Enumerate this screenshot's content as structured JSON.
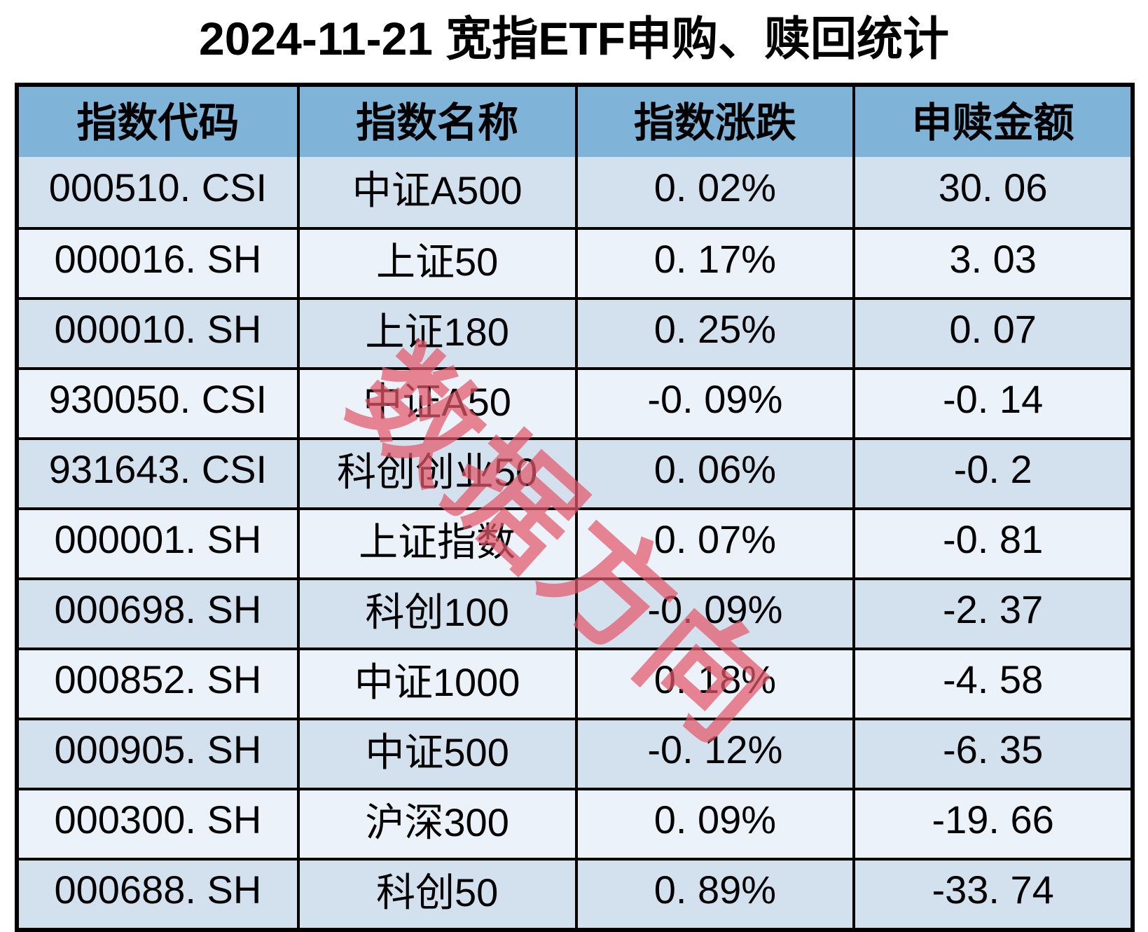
{
  "title": "2024-11-21 宽指ETF申购、赎回统计",
  "watermark": "数据方向",
  "colors": {
    "header_bg": "#7fb4d8",
    "row_odd_bg": "#d3e1ef",
    "row_even_bg": "#ebf2fa",
    "grid_border": "#000000",
    "watermark_color": "#e4596b",
    "title_color": "#000000"
  },
  "table": {
    "headers": {
      "code": "指数代码",
      "name": "指数名称",
      "change": "指数涨跌",
      "amount": "申赎金额"
    },
    "rows": [
      {
        "code": "000510. CSI",
        "name": "中证A500",
        "change": "0. 02%",
        "amount": "30. 06"
      },
      {
        "code": "000016. SH",
        "name": "上证50",
        "change": "0. 17%",
        "amount": "3. 03"
      },
      {
        "code": "000010. SH",
        "name": "上证180",
        "change": "0. 25%",
        "amount": "0. 07"
      },
      {
        "code": "930050. CSI",
        "name": "中证A50",
        "change": "-0. 09%",
        "amount": "-0. 14"
      },
      {
        "code": "931643. CSI",
        "name": "科创创业50",
        "change": "0. 06%",
        "amount": "-0. 2"
      },
      {
        "code": "000001. SH",
        "name": "上证指数",
        "change": "0. 07%",
        "amount": "-0. 81"
      },
      {
        "code": "000698. SH",
        "name": "科创100",
        "change": "-0. 09%",
        "amount": "-2. 37"
      },
      {
        "code": "000852. SH",
        "name": "中证1000",
        "change": "0. 18%",
        "amount": "-4. 58"
      },
      {
        "code": "000905. SH",
        "name": "中证500",
        "change": "-0. 12%",
        "amount": "-6. 35"
      },
      {
        "code": "000300. SH",
        "name": "沪深300",
        "change": "0. 09%",
        "amount": "-19. 66"
      },
      {
        "code": "000688. SH",
        "name": "科创50",
        "change": "0. 89%",
        "amount": "-33. 74"
      }
    ]
  },
  "chart_data": {
    "type": "table",
    "title": "2024-11-21 宽指ETF申购、赎回统计",
    "columns": [
      "指数代码",
      "指数名称",
      "指数涨跌",
      "申赎金额"
    ],
    "rows": [
      [
        "000510.CSI",
        "中证A500",
        "0.02%",
        30.06
      ],
      [
        "000016.SH",
        "上证50",
        "0.17%",
        3.03
      ],
      [
        "000010.SH",
        "上证180",
        "0.25%",
        0.07
      ],
      [
        "930050.CSI",
        "中证A50",
        "-0.09%",
        -0.14
      ],
      [
        "931643.CSI",
        "科创创业50",
        "0.06%",
        -0.2
      ],
      [
        "000001.SH",
        "上证指数",
        "0.07%",
        -0.81
      ],
      [
        "000698.SH",
        "科创100",
        "-0.09%",
        -2.37
      ],
      [
        "000852.SH",
        "中证1000",
        "0.18%",
        -4.58
      ],
      [
        "000905.SH",
        "中证500",
        "-0.12%",
        -6.35
      ],
      [
        "000300.SH",
        "沪深300",
        "0.09%",
        -19.66
      ],
      [
        "000688.SH",
        "科创50",
        "0.89%",
        -33.74
      ]
    ],
    "notes": "watermark text 数据方向 rotated ~42deg over table center; last row clipped by image bottom edge"
  }
}
